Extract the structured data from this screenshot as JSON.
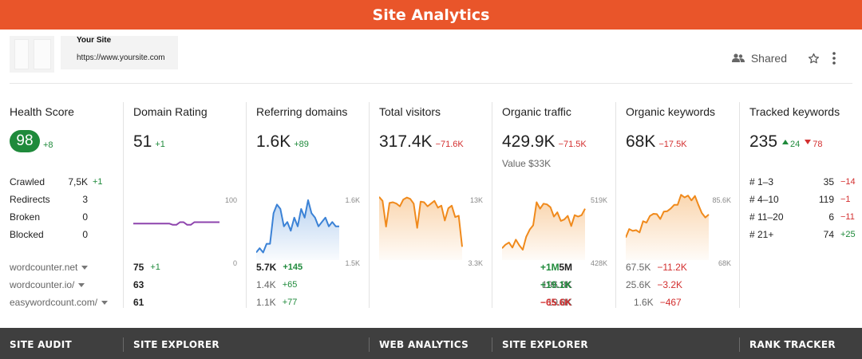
{
  "header": {
    "title": "Site Analytics"
  },
  "site": {
    "name": "Your Site",
    "url": "https://www.yoursite.com",
    "shared_label": "Shared",
    "icons": {
      "share": "people-icon",
      "star": "star-icon",
      "more": "more-vertical-icon"
    }
  },
  "health": {
    "title": "Health Score",
    "score": "98",
    "delta": "+8",
    "stats": [
      {
        "label": "Crawled",
        "value": "7,5K",
        "delta": "+1"
      },
      {
        "label": "Redirects",
        "value": "3",
        "delta": ""
      },
      {
        "label": "Broken",
        "value": "0",
        "delta": ""
      },
      {
        "label": "Blocked",
        "value": "0",
        "delta": ""
      }
    ],
    "sites": [
      "wordcounter.net",
      "wordcounter.io/",
      "easywordcount.com/"
    ]
  },
  "domain_rating": {
    "title": "Domain Rating",
    "value": "51",
    "delta": "+1",
    "axis_max": "100",
    "axis_min": "0",
    "series": [
      51,
      51,
      51,
      51,
      51,
      51,
      51,
      51,
      51,
      51,
      51,
      49,
      49,
      53,
      53,
      49,
      49,
      53,
      53,
      53,
      53,
      53,
      53,
      53,
      53
    ],
    "rows": [
      {
        "value": "75",
        "delta": "+1"
      },
      {
        "value": "63",
        "delta": ""
      },
      {
        "value": "61",
        "delta": ""
      }
    ]
  },
  "referring_domains": {
    "title": "Referring domains",
    "value": "1.6K",
    "delta": "+89",
    "axis_max": "1.6K",
    "axis_min": "1.5K",
    "series": [
      1.51,
      1.52,
      1.51,
      1.53,
      1.53,
      1.6,
      1.62,
      1.61,
      1.57,
      1.58,
      1.56,
      1.59,
      1.57,
      1.61,
      1.59,
      1.63,
      1.6,
      1.59,
      1.57,
      1.58,
      1.59,
      1.57,
      1.58,
      1.57,
      1.57
    ],
    "rows": [
      {
        "value": "5.7K",
        "delta": "+145"
      },
      {
        "value": "1.4K",
        "delta": "+65"
      },
      {
        "value": "1.1K",
        "delta": "+77"
      }
    ]
  },
  "total_visitors": {
    "title": "Total visitors",
    "value": "317.4K",
    "delta": "−71.6K",
    "axis_max": "13K",
    "axis_min": "3.3K",
    "series": [
      12.2,
      11.6,
      7.8,
      11.3,
      11.4,
      11.2,
      10.8,
      11.8,
      12.1,
      11.9,
      11.2,
      7.6,
      11.5,
      11.4,
      10.8,
      11.2,
      11.6,
      10.6,
      10.9,
      8.7,
      10.5,
      10.9,
      9.2,
      9.4,
      4.8
    ]
  },
  "organic_traffic": {
    "title": "Organic traffic",
    "value": "429.9K",
    "delta": "−71.5K",
    "sub_label": "Value $33K",
    "axis_max": "519K",
    "axis_min": "428K",
    "series": [
      440,
      445,
      448,
      441,
      452,
      444,
      438,
      456,
      466,
      472,
      504,
      495,
      502,
      501,
      497,
      484,
      490,
      478,
      480,
      485,
      471,
      486,
      484,
      486,
      495
    ],
    "rows": [
      {
        "value": "5M",
        "delta": "+1M"
      },
      {
        "value": "196.8K",
        "delta": "+19.1K"
      },
      {
        "value": "19.8K",
        "delta": "−65.6K"
      }
    ]
  },
  "organic_keywords": {
    "title": "Organic keywords",
    "value": "68K",
    "delta": "−17.5K",
    "axis_max": "85.6K",
    "axis_min": "68K",
    "series": [
      73.2,
      75.5,
      75,
      75.2,
      74.6,
      77.6,
      77.2,
      79,
      79.6,
      79.5,
      78.2,
      80.2,
      80.3,
      81,
      82,
      82,
      84.7,
      84,
      84.5,
      83.2,
      84.4,
      82,
      79.8,
      78.6,
      79.4
    ],
    "rows": [
      {
        "value": "67.5K",
        "delta": "−11.2K"
      },
      {
        "value": "25.6K",
        "delta": "−3.2K"
      },
      {
        "value": "1.6K",
        "delta": "−467"
      }
    ]
  },
  "tracked_keywords": {
    "title": "Tracked keywords",
    "value": "235",
    "up": "24",
    "down": "78",
    "rows": [
      {
        "label": "# 1–3",
        "value": "35",
        "delta": "−14",
        "sign": "neg"
      },
      {
        "label": "# 4–10",
        "value": "119",
        "delta": "−1",
        "sign": "neg"
      },
      {
        "label": "# 11–20",
        "value": "6",
        "delta": "−11",
        "sign": "neg"
      },
      {
        "label": "# 21+",
        "value": "74",
        "delta": "+25",
        "sign": "pos"
      }
    ]
  },
  "footer": {
    "site_audit": "SITE AUDIT",
    "site_explorer_1": "SITE EXPLORER",
    "web_analytics": "WEB ANALYTICS",
    "site_explorer_2": "SITE EXPLORER",
    "rank_tracker": "RANK TRACKER"
  },
  "colors": {
    "brand": "#e9552a",
    "positive": "#1f8a3b",
    "negative": "#d32f2f",
    "domain_line": "#8e44ad",
    "referring_line": "#3b82d6",
    "orange_line": "#f08a1c",
    "footer_bg": "#3f3f3f"
  }
}
